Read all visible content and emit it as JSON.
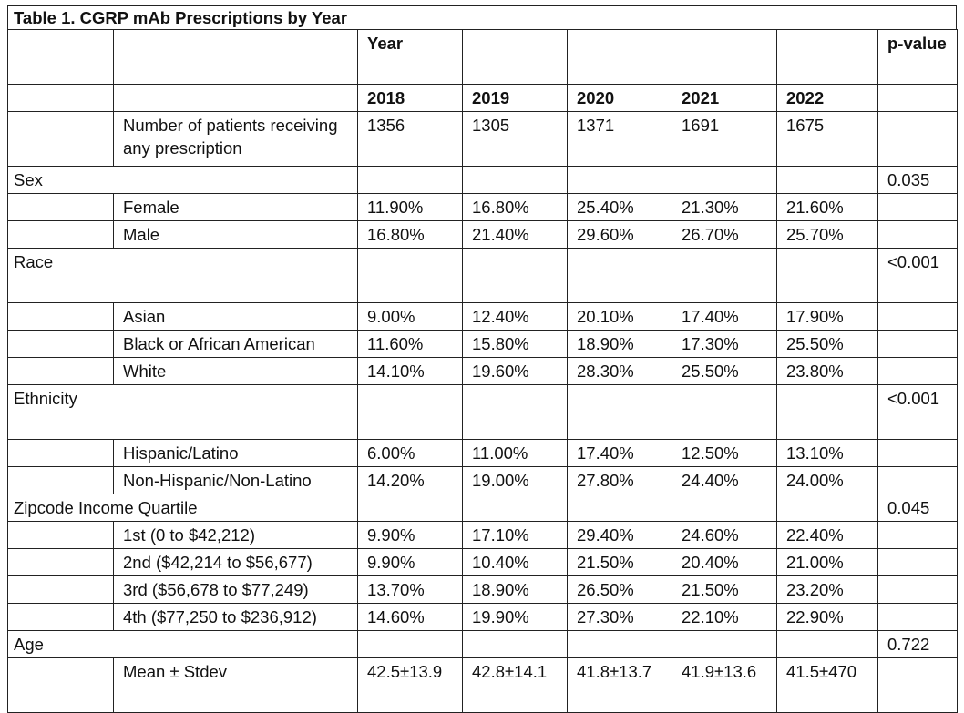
{
  "title": "Table 1. CGRP mAb Prescriptions by Year",
  "header": {
    "year_group": "Year",
    "pvalue": "p-value",
    "years": [
      "2018",
      "2019",
      "2020",
      "2021",
      "2022"
    ]
  },
  "rows": [
    {
      "kind": "sub",
      "label": "Number of patients receiving any prescription",
      "values": [
        "1356",
        "1305",
        "1371",
        "1691",
        "1675"
      ],
      "p": ""
    },
    {
      "kind": "cat",
      "label": "Sex",
      "p": "0.035"
    },
    {
      "kind": "sub",
      "label": "Female",
      "values": [
        "11.90%",
        "16.80%",
        "25.40%",
        "21.30%",
        "21.60%"
      ],
      "p": ""
    },
    {
      "kind": "sub",
      "label": "Male",
      "values": [
        "16.80%",
        "21.40%",
        "29.60%",
        "26.70%",
        "25.70%"
      ],
      "p": ""
    },
    {
      "kind": "cat",
      "label": "Race",
      "p": "<0.001"
    },
    {
      "kind": "sub",
      "label": "Asian",
      "values": [
        "9.00%",
        "12.40%",
        "20.10%",
        "17.40%",
        "17.90%"
      ],
      "p": ""
    },
    {
      "kind": "sub",
      "label": "Black or African American",
      "values": [
        "11.60%",
        "15.80%",
        "18.90%",
        "17.30%",
        "25.50%"
      ],
      "p": ""
    },
    {
      "kind": "sub",
      "label": "White",
      "values": [
        "14.10%",
        "19.60%",
        "28.30%",
        "25.50%",
        "23.80%"
      ],
      "p": ""
    },
    {
      "kind": "cat",
      "label": "Ethnicity",
      "p": "<0.001"
    },
    {
      "kind": "sub",
      "label": "Hispanic/Latino",
      "values": [
        "6.00%",
        "11.00%",
        "17.40%",
        "12.50%",
        "13.10%"
      ],
      "p": ""
    },
    {
      "kind": "sub",
      "label": "Non-Hispanic/Non-Latino",
      "values": [
        "14.20%",
        "19.00%",
        "27.80%",
        "24.40%",
        "24.00%"
      ],
      "p": ""
    },
    {
      "kind": "cat",
      "label": "Zipcode Income Quartile",
      "p": "0.045"
    },
    {
      "kind": "sub",
      "label": "1st (0 to $42,212)",
      "values": [
        "9.90%",
        "17.10%",
        "29.40%",
        "24.60%",
        "22.40%"
      ],
      "p": ""
    },
    {
      "kind": "sub",
      "label": "2nd ($42,214 to $56,677)",
      "values": [
        "9.90%",
        "10.40%",
        "21.50%",
        "20.40%",
        "21.00%"
      ],
      "p": ""
    },
    {
      "kind": "sub",
      "label": "3rd ($56,678 to $77,249)",
      "values": [
        "13.70%",
        "18.90%",
        "26.50%",
        "21.50%",
        "23.20%"
      ],
      "p": ""
    },
    {
      "kind": "sub",
      "label": "4th ($77,250 to $236,912)",
      "values": [
        "14.60%",
        "19.90%",
        "27.30%",
        "22.10%",
        "22.90%"
      ],
      "p": ""
    },
    {
      "kind": "cat",
      "label": "Age",
      "p": "0.722"
    },
    {
      "kind": "sub",
      "label": "Mean ± Stdev",
      "values": [
        "42.5±13.9",
        "42.8±14.1",
        "41.8±13.7",
        "41.9±13.6",
        "41.5±470"
      ],
      "p": ""
    }
  ]
}
